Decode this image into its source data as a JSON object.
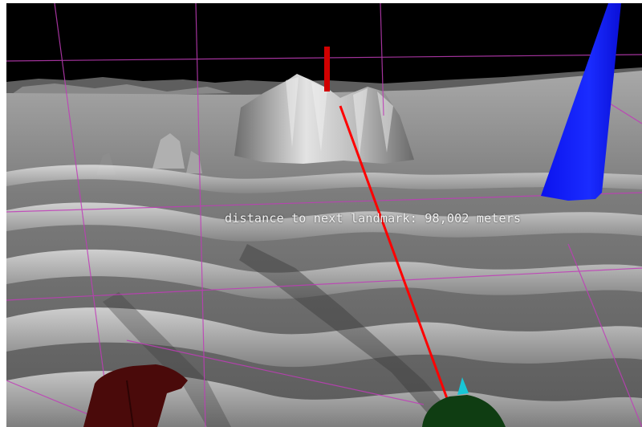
{
  "hud": {
    "distance_label": "distance to next landmark: 98,002 meters"
  },
  "colors": {
    "sky": "#000000",
    "terrain_light": "#d9d9d9",
    "terrain_mid": "#8e8e8e",
    "terrain_dark": "#3c3c3c",
    "grid_lines": "#c03cb8",
    "pointer_ray": "#ff0000",
    "landmark_marker": "#d10000",
    "blue_beam": "#0a14ff",
    "left_controller": "#4a0a0a",
    "right_controller": "#0f3d12",
    "right_controller_tip": "#19c6d6"
  }
}
